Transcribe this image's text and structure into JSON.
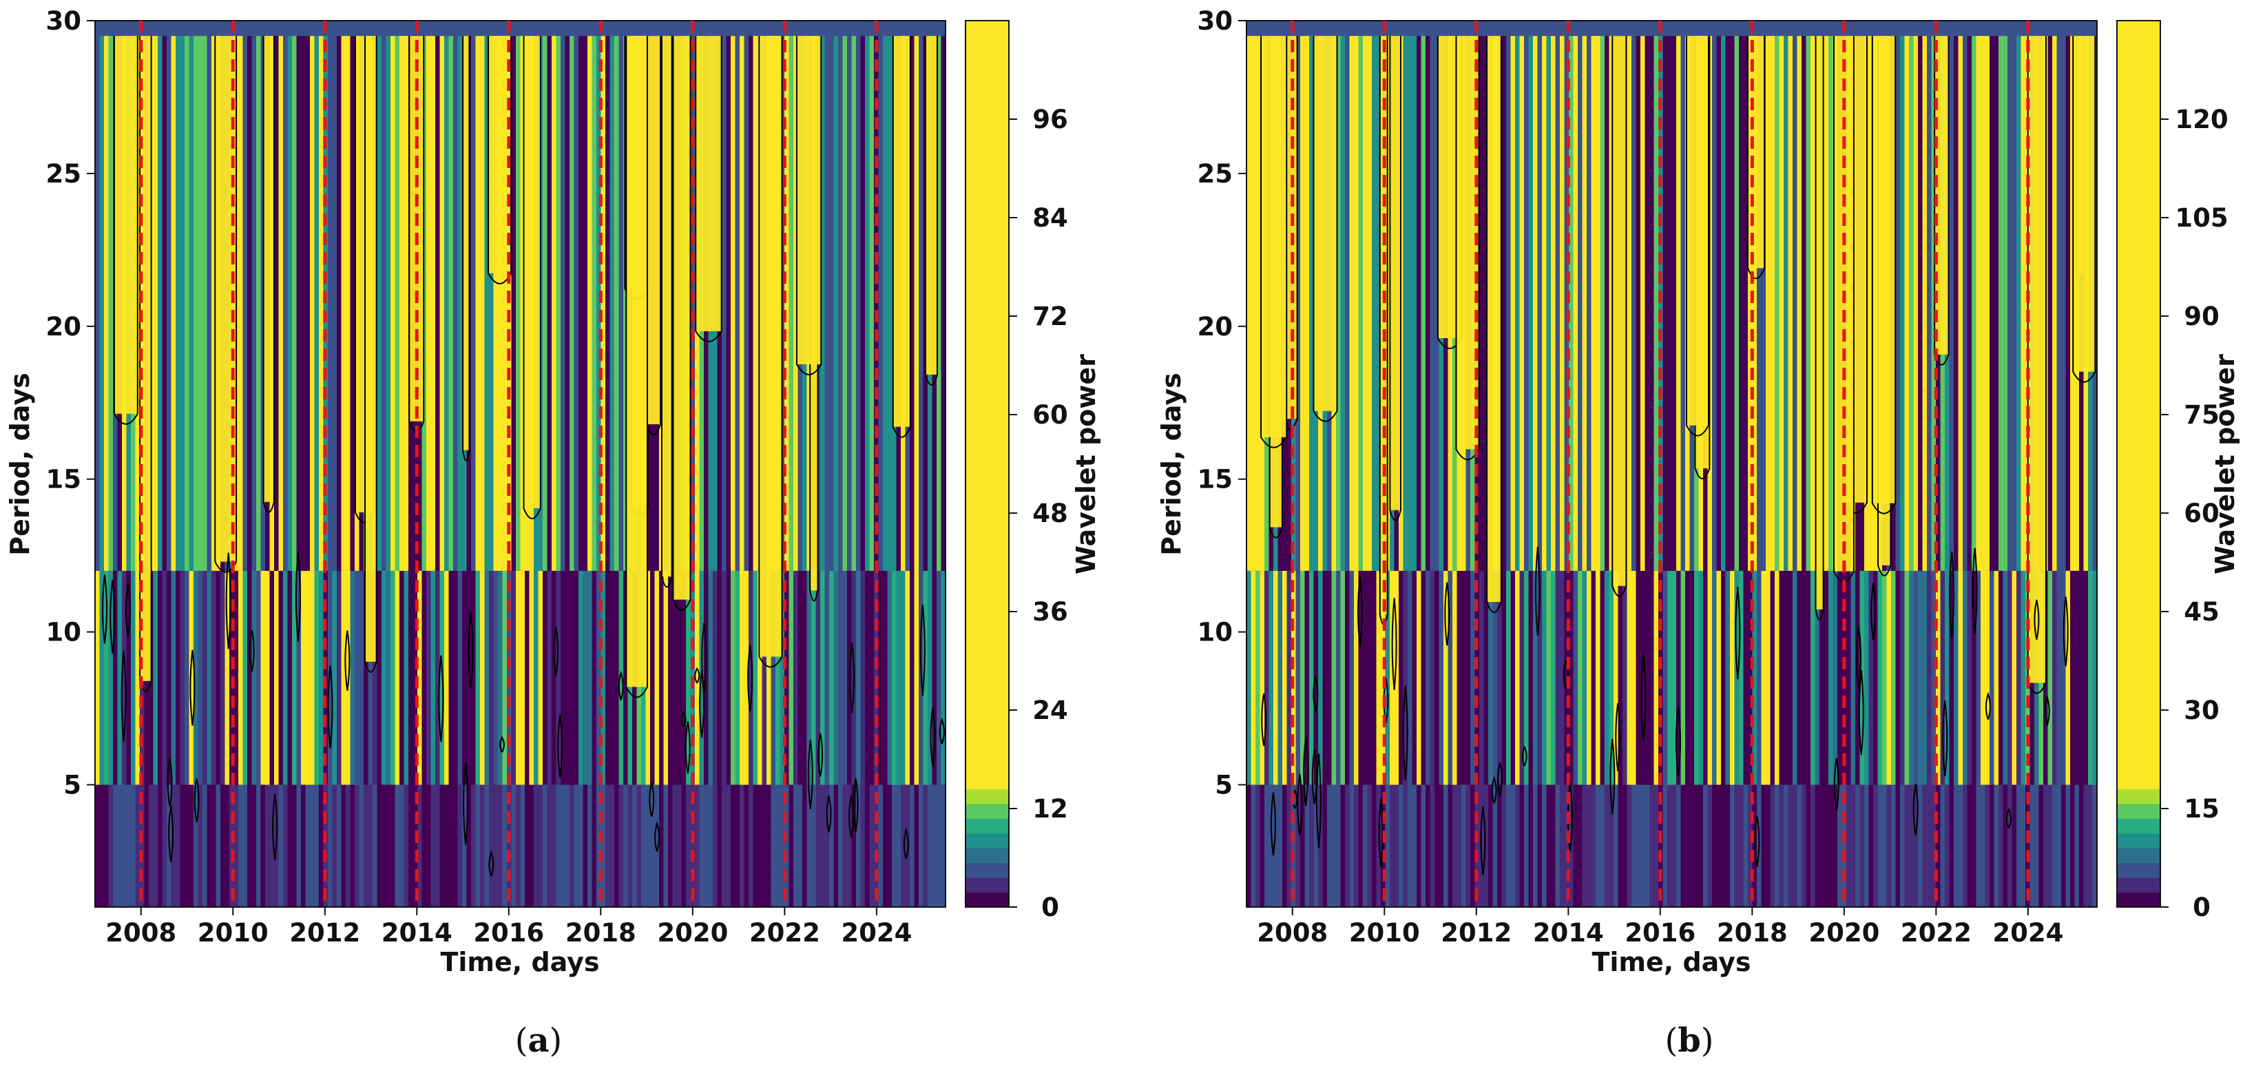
{
  "colors": {
    "viridis": [
      "#440154",
      "#472c7a",
      "#3b518b",
      "#2c718e",
      "#21908d",
      "#27ad81",
      "#5cc863",
      "#aadc32",
      "#fde725"
    ],
    "event_line": "#e8141a",
    "contour": "#000000"
  },
  "event_years": [
    2008,
    2010,
    2012,
    2014,
    2016,
    2018,
    2020,
    2022,
    2024
  ],
  "chart_data": [
    {
      "panel": "(a)",
      "caption_open": "(",
      "caption_letter": "a",
      "caption_close": ")",
      "type": "heatmap",
      "xlabel": "Time, days",
      "ylabel": "Period, days",
      "xlim": [
        2007.0,
        2025.5
      ],
      "ylim": [
        1,
        30
      ],
      "xticks": [
        "2008",
        "2010",
        "2012",
        "2014",
        "2016",
        "2018",
        "2020",
        "2022",
        "2024"
      ],
      "yticks": [
        "5",
        "10",
        "15",
        "20",
        "25",
        "30"
      ],
      "colorbar": {
        "label": "Wavelet power",
        "range": [
          0,
          108
        ],
        "ticks": [
          "0",
          "12",
          "24",
          "36",
          "48",
          "60",
          "72",
          "84",
          "96"
        ]
      },
      "vertical_markers": [
        2008,
        2010,
        2012,
        2014,
        2016,
        2018,
        2020,
        2022,
        2024
      ]
    },
    {
      "panel": "(b)",
      "caption_open": "(",
      "caption_letter": "b",
      "caption_close": ")",
      "type": "heatmap",
      "xlabel": "Time, days",
      "ylabel": "Period, days",
      "xlim": [
        2007.0,
        2025.5
      ],
      "ylim": [
        1,
        30
      ],
      "xticks": [
        "2008",
        "2010",
        "2012",
        "2014",
        "2016",
        "2018",
        "2020",
        "2022",
        "2024"
      ],
      "yticks": [
        "5",
        "10",
        "15",
        "20",
        "25",
        "30"
      ],
      "colorbar": {
        "label": "Wavelet power",
        "range": [
          0,
          135
        ],
        "ticks": [
          "0",
          "15",
          "30",
          "45",
          "60",
          "75",
          "90",
          "105",
          "120"
        ]
      },
      "vertical_markers": [
        2008,
        2010,
        2012,
        2014,
        2016,
        2018,
        2020,
        2022,
        2024
      ]
    }
  ]
}
